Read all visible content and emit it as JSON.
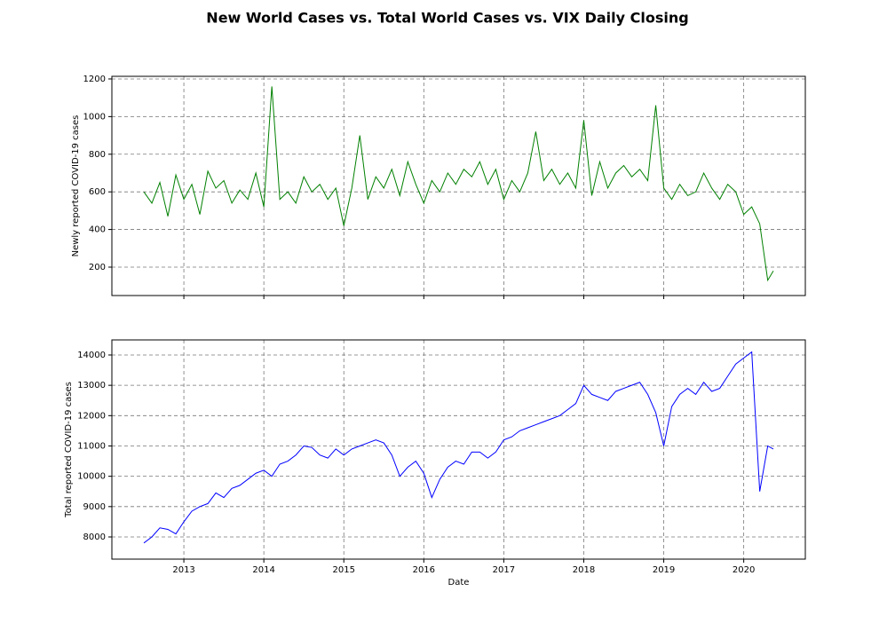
{
  "chart_data": [
    {
      "type": "line",
      "title": "New World Cases vs. Total World Cases vs. VIX Daily Closing",
      "ylabel": "Newly reported COVID-19 cases",
      "x": [
        2012.5,
        2012.6,
        2012.7,
        2012.8,
        2012.9,
        2013.0,
        2013.1,
        2013.2,
        2013.3,
        2013.4,
        2013.5,
        2013.6,
        2013.7,
        2013.8,
        2013.9,
        2014.0,
        2014.1,
        2014.2,
        2014.3,
        2014.4,
        2014.5,
        2014.6,
        2014.7,
        2014.8,
        2014.9,
        2015.0,
        2015.1,
        2015.2,
        2015.3,
        2015.4,
        2015.5,
        2015.6,
        2015.7,
        2015.8,
        2015.9,
        2016.0,
        2016.1,
        2016.2,
        2016.3,
        2016.4,
        2016.5,
        2016.6,
        2016.7,
        2016.8,
        2016.9,
        2017.0,
        2017.1,
        2017.2,
        2017.3,
        2017.4,
        2017.5,
        2017.6,
        2017.7,
        2017.8,
        2017.9,
        2018.0,
        2018.1,
        2018.2,
        2018.3,
        2018.4,
        2018.5,
        2018.6,
        2018.7,
        2018.8,
        2018.9,
        2019.0,
        2019.1,
        2019.2,
        2019.3,
        2019.4,
        2019.5,
        2019.6,
        2019.7,
        2019.8,
        2019.9,
        2020.0,
        2020.1,
        2020.2,
        2020.3,
        2020.37
      ],
      "series": [
        {
          "name": "Newly reported COVID-19 cases",
          "color": "#008000",
          "values": [
            600,
            540,
            650,
            470,
            690,
            560,
            640,
            480,
            710,
            620,
            660,
            540,
            610,
            560,
            700,
            520,
            1160,
            560,
            600,
            540,
            680,
            600,
            640,
            560,
            620,
            420,
            620,
            900,
            560,
            680,
            620,
            720,
            580,
            760,
            640,
            540,
            660,
            600,
            700,
            640,
            720,
            680,
            760,
            640,
            720,
            560,
            660,
            600,
            700,
            920,
            660,
            720,
            640,
            700,
            620,
            980,
            580,
            760,
            620,
            700,
            740,
            680,
            720,
            660,
            1060,
            620,
            560,
            640,
            580,
            600,
            700,
            620,
            560,
            640,
            600,
            480,
            520,
            430,
            130,
            180
          ]
        }
      ],
      "xlim": [
        2012.1,
        2020.77
      ],
      "xticks": [
        2013,
        2014,
        2015,
        2016,
        2017,
        2018,
        2019,
        2020
      ],
      "ylim": [
        49,
        1214
      ],
      "yticks": [
        200,
        400,
        600,
        800,
        1000,
        1200
      ],
      "grid": true
    },
    {
      "type": "line",
      "xlabel": "Date",
      "ylabel": "Total reported COVID-19 cases",
      "x": [
        2012.5,
        2012.6,
        2012.7,
        2012.8,
        2012.9,
        2013.0,
        2013.1,
        2013.2,
        2013.3,
        2013.4,
        2013.5,
        2013.6,
        2013.7,
        2013.8,
        2013.9,
        2014.0,
        2014.1,
        2014.2,
        2014.3,
        2014.4,
        2014.5,
        2014.6,
        2014.7,
        2014.8,
        2014.9,
        2015.0,
        2015.1,
        2015.2,
        2015.3,
        2015.4,
        2015.5,
        2015.6,
        2015.7,
        2015.8,
        2015.9,
        2016.0,
        2016.1,
        2016.2,
        2016.3,
        2016.4,
        2016.5,
        2016.6,
        2016.7,
        2016.8,
        2016.9,
        2017.0,
        2017.1,
        2017.2,
        2017.3,
        2017.4,
        2017.5,
        2017.6,
        2017.7,
        2017.8,
        2017.9,
        2018.0,
        2018.1,
        2018.2,
        2018.3,
        2018.4,
        2018.5,
        2018.6,
        2018.7,
        2018.8,
        2018.9,
        2019.0,
        2019.1,
        2019.2,
        2019.3,
        2019.4,
        2019.5,
        2019.6,
        2019.7,
        2019.8,
        2019.9,
        2020.0,
        2020.1,
        2020.2,
        2020.3,
        2020.37
      ],
      "series": [
        {
          "name": "Total reported COVID-19 cases",
          "color": "#0000ff",
          "values": [
            7800,
            8000,
            8300,
            8250,
            8100,
            8500,
            8850,
            9000,
            9100,
            9450,
            9300,
            9600,
            9700,
            9900,
            10100,
            10200,
            10000,
            10400,
            10500,
            10700,
            11000,
            10950,
            10700,
            10600,
            10900,
            10700,
            10900,
            11000,
            11100,
            11200,
            11100,
            10700,
            10000,
            10300,
            10500,
            10100,
            9300,
            9900,
            10300,
            10500,
            10400,
            10800,
            10800,
            10600,
            10800,
            11200,
            11300,
            11500,
            11600,
            11700,
            11800,
            11900,
            12000,
            12200,
            12400,
            13000,
            12700,
            12600,
            12500,
            12800,
            12900,
            13000,
            13100,
            12700,
            12100,
            11000,
            12300,
            12700,
            12900,
            12700,
            13100,
            12800,
            12900,
            13300,
            13700,
            13900,
            14100,
            9500,
            11000,
            10900
          ]
        }
      ],
      "xlim": [
        2012.1,
        2020.77
      ],
      "xticks": [
        2013,
        2014,
        2015,
        2016,
        2017,
        2018,
        2019,
        2020
      ],
      "ylim": [
        7268,
        14497
      ],
      "yticks": [
        8000,
        9000,
        10000,
        11000,
        12000,
        13000,
        14000
      ],
      "grid": true
    }
  ]
}
